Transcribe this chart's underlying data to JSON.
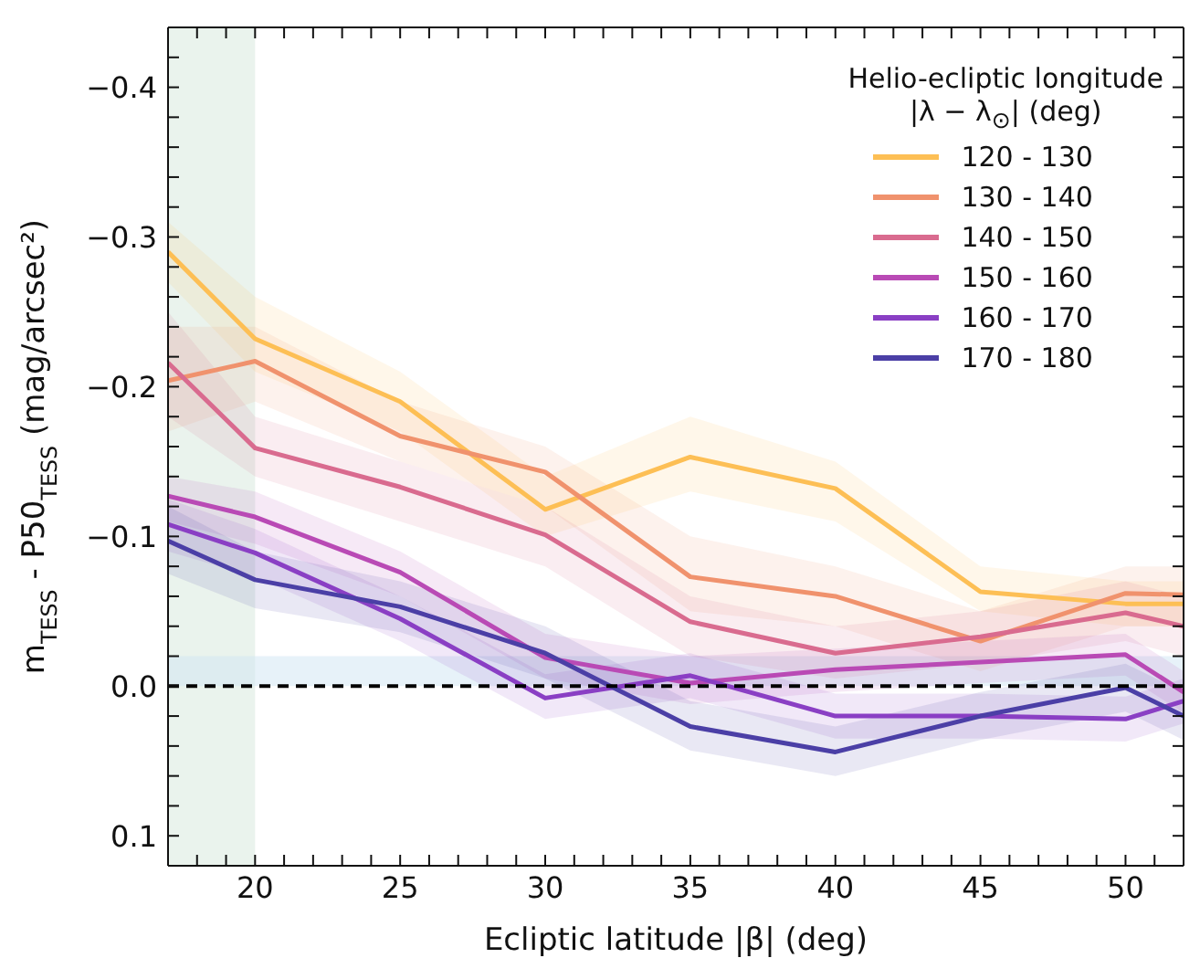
{
  "chart_data": {
    "type": "line",
    "xlabel": "Ecliptic latitude |β| (deg)",
    "ylabel": "m$_{TESS}$ - P50$_{TESS}$ (mag/arcsec²)",
    "legend_title": "Helio-ecliptic longitude\n|λ − λ$_{⊙}$| (deg)",
    "legend": "top right",
    "grid": false,
    "marker": "none",
    "line_style": "solid",
    "x": [
      17,
      20,
      25,
      30,
      35,
      40,
      45,
      50,
      52
    ],
    "xlim": [
      17,
      52
    ],
    "xticks": [
      {
        "value": 18,
        "label": null
      },
      {
        "value": 19,
        "label": null
      },
      20,
      {
        "value": 21,
        "label": null
      },
      {
        "value": 22,
        "label": null
      },
      {
        "value": 23,
        "label": null
      },
      {
        "value": 24,
        "label": null
      },
      25,
      {
        "value": 26,
        "label": null
      },
      {
        "value": 27,
        "label": null
      },
      {
        "value": 28,
        "label": null
      },
      {
        "value": 29,
        "label": null
      },
      30,
      {
        "value": 31,
        "label": null
      },
      {
        "value": 32,
        "label": null
      },
      {
        "value": 33,
        "label": null
      },
      {
        "value": 34,
        "label": null
      },
      35,
      {
        "value": 36,
        "label": null
      },
      {
        "value": 37,
        "label": null
      },
      {
        "value": 38,
        "label": null
      },
      {
        "value": 39,
        "label": null
      },
      40,
      {
        "value": 41,
        "label": null
      },
      {
        "value": 42,
        "label": null
      },
      {
        "value": 43,
        "label": null
      },
      {
        "value": 44,
        "label": null
      },
      45,
      {
        "value": 46,
        "label": null
      },
      {
        "value": 47,
        "label": null
      },
      {
        "value": 48,
        "label": null
      },
      {
        "value": 49,
        "label": null
      },
      50,
      {
        "value": 51,
        "label": null
      }
    ],
    "ylim": [
      0.12,
      -0.44
    ],
    "yticks": [
      {
        "value": -0.4,
        "label": "−0.4"
      },
      {
        "value": -0.3,
        "label": "−0.3"
      },
      {
        "value": -0.2,
        "label": "−0.2"
      },
      {
        "value": -0.1,
        "label": "−0.1"
      },
      {
        "value": 0,
        "label": "0.0"
      },
      0.1,
      {
        "value": -0.42,
        "label": null
      },
      {
        "value": -0.38,
        "label": null
      },
      {
        "value": -0.36,
        "label": null
      },
      {
        "value": -0.34,
        "label": null
      },
      {
        "value": -0.32,
        "label": null
      },
      {
        "value": -0.28,
        "label": null
      },
      {
        "value": -0.26,
        "label": null
      },
      {
        "value": -0.24,
        "label": null
      },
      {
        "value": -0.22,
        "label": null
      },
      {
        "value": -0.18,
        "label": null
      },
      {
        "value": -0.16,
        "label": null
      },
      {
        "value": -0.14,
        "label": null
      },
      {
        "value": -0.12,
        "label": null
      },
      {
        "value": -0.08,
        "label": null
      },
      {
        "value": -0.06,
        "label": null
      },
      {
        "value": -0.04,
        "label": null
      },
      {
        "value": -0.02,
        "label": null
      },
      {
        "value": 0.02,
        "label": null
      },
      {
        "value": 0.04,
        "label": null
      },
      {
        "value": 0.06,
        "label": null
      },
      {
        "value": 0.08,
        "label": null
      }
    ],
    "bands": [
      {
        "axis": "x",
        "from": 17,
        "to": 20,
        "color": "#d5e8dc"
      },
      {
        "axis": "y",
        "from": -0.02,
        "to": 0,
        "color": "#cfe6f3"
      }
    ],
    "ref_lines": [
      {
        "axis": "y",
        "value": 0,
        "color": "#000000",
        "line_style": "dashed"
      }
    ],
    "series": [
      {
        "name": "120 - 130",
        "color": "#fdbf55",
        "values": [
          -0.29,
          -0.232,
          -0.19,
          -0.118,
          -0.153,
          -0.132,
          -0.063,
          -0.055,
          -0.055
        ],
        "lower": [
          -0.31,
          -0.26,
          -0.21,
          -0.14,
          -0.18,
          -0.15,
          -0.08,
          -0.07,
          -0.07
        ],
        "upper": [
          -0.27,
          -0.21,
          -0.17,
          -0.1,
          -0.13,
          -0.11,
          -0.05,
          -0.04,
          -0.04
        ]
      },
      {
        "name": "130 - 140",
        "color": "#f0926d",
        "values": [
          -0.204,
          -0.217,
          -0.167,
          -0.143,
          -0.073,
          -0.06,
          -0.03,
          -0.062,
          -0.061
        ],
        "lower": [
          -0.24,
          -0.24,
          -0.19,
          -0.16,
          -0.1,
          -0.08,
          -0.05,
          -0.08,
          -0.08
        ],
        "upper": [
          -0.17,
          -0.19,
          -0.15,
          -0.12,
          -0.05,
          -0.04,
          -0.01,
          -0.04,
          -0.04
        ]
      },
      {
        "name": "140 - 150",
        "color": "#d96b8f",
        "values": [
          -0.216,
          -0.159,
          -0.133,
          -0.101,
          -0.043,
          -0.022,
          -0.033,
          -0.049,
          -0.04
        ],
        "lower": [
          -0.25,
          -0.18,
          -0.15,
          -0.12,
          -0.06,
          -0.04,
          -0.05,
          -0.07,
          -0.06
        ],
        "upper": [
          -0.18,
          -0.14,
          -0.11,
          -0.08,
          -0.02,
          -0.005,
          -0.015,
          -0.03,
          -0.02
        ]
      },
      {
        "name": "150 - 160",
        "color": "#b94ab5",
        "values": [
          -0.127,
          -0.113,
          -0.076,
          -0.019,
          -0.002,
          -0.011,
          -0.016,
          -0.021,
          0.004
        ],
        "lower": [
          -0.14,
          -0.13,
          -0.09,
          -0.035,
          -0.02,
          -0.025,
          -0.03,
          -0.035,
          -0.01
        ],
        "upper": [
          -0.11,
          -0.095,
          -0.06,
          -0.005,
          0.012,
          0.004,
          -0.002,
          -0.007,
          0.018
        ]
      },
      {
        "name": "160 - 170",
        "color": "#8a3fc4",
        "values": [
          -0.108,
          -0.089,
          -0.045,
          0.008,
          -0.007,
          0.02,
          0.02,
          0.022,
          0.01
        ],
        "lower": [
          -0.125,
          -0.105,
          -0.06,
          -0.008,
          -0.022,
          0.005,
          0.005,
          0.007,
          -0.005
        ],
        "upper": [
          -0.09,
          -0.073,
          -0.03,
          0.022,
          0.008,
          0.035,
          0.035,
          0.037,
          0.025
        ]
      },
      {
        "name": "170 - 180",
        "color": "#4b3fa6",
        "values": [
          -0.097,
          -0.071,
          -0.053,
          -0.022,
          0.027,
          0.044,
          0.02,
          0.001,
          0.02
        ],
        "lower": [
          -0.12,
          -0.09,
          -0.07,
          -0.04,
          0.01,
          0.027,
          0.004,
          -0.015,
          0.004
        ],
        "upper": [
          -0.075,
          -0.052,
          -0.036,
          -0.005,
          0.043,
          0.06,
          0.036,
          0.017,
          0.036
        ]
      }
    ]
  }
}
